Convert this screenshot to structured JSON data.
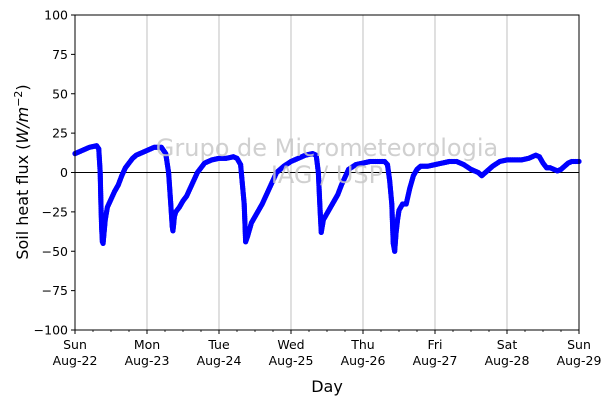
{
  "chart_data": {
    "type": "scatter",
    "xlabel": "Day",
    "ylabel_main": "Soil heat flux (",
    "ylabel_unit": "W/m",
    "ylabel_exp": "−2",
    "ylabel_close": ")",
    "ylim": [
      -100,
      100
    ],
    "xlim": [
      0,
      7
    ],
    "yticks": [
      -100,
      -75,
      -50,
      -25,
      0,
      25,
      50,
      75,
      100
    ],
    "xticks": [
      {
        "x": 0,
        "line1": "Sun",
        "line2": "Aug-22"
      },
      {
        "x": 1,
        "line1": "Mon",
        "line2": "Aug-23"
      },
      {
        "x": 2,
        "line1": "Tue",
        "line2": "Aug-24"
      },
      {
        "x": 3,
        "line1": "Wed",
        "line2": "Aug-25"
      },
      {
        "x": 4,
        "line1": "Thu",
        "line2": "Aug-26"
      },
      {
        "x": 5,
        "line1": "Fri",
        "line2": "Aug-27"
      },
      {
        "x": 6,
        "line1": "Sat",
        "line2": "Aug-28"
      },
      {
        "x": 7,
        "line1": "Sun",
        "line2": "Aug-29"
      }
    ],
    "grid": "vertical",
    "zero_line": true,
    "marker_color": "#0000ff",
    "watermark_line1": "Grupo de Micrometeorologia",
    "watermark_line2": "IAG / USP",
    "series": [
      {
        "color": "#0000ff",
        "x": [
          0.0,
          0.1,
          0.2,
          0.3,
          0.33,
          0.35,
          0.36,
          0.37,
          0.38,
          0.39,
          0.4,
          0.42,
          0.45,
          0.5,
          0.55,
          0.6,
          0.65,
          0.7,
          0.75,
          0.8,
          0.85,
          0.9,
          1.0,
          1.1,
          1.2,
          1.26,
          1.3,
          1.33,
          1.35,
          1.36,
          1.37,
          1.38,
          1.4,
          1.45,
          1.5,
          1.55,
          1.6,
          1.65,
          1.7,
          1.75,
          1.8,
          1.9,
          2.0,
          2.1,
          2.2,
          2.25,
          2.3,
          2.35,
          2.37,
          2.4,
          2.45,
          2.5,
          2.55,
          2.6,
          2.65,
          2.7,
          2.75,
          2.8,
          2.9,
          3.0,
          3.1,
          3.2,
          3.3,
          3.35,
          3.38,
          3.4,
          3.42,
          3.45,
          3.5,
          3.55,
          3.6,
          3.65,
          3.7,
          3.75,
          3.8,
          3.9,
          4.0,
          4.1,
          4.2,
          4.3,
          4.34,
          4.37,
          4.4,
          4.42,
          4.44,
          4.46,
          4.48,
          4.5,
          4.55,
          4.6,
          4.65,
          4.7,
          4.75,
          4.8,
          4.85,
          4.9,
          5.0,
          5.1,
          5.2,
          5.3,
          5.4,
          5.5,
          5.6,
          5.65,
          5.7,
          5.75,
          5.8,
          5.9,
          6.0,
          6.1,
          6.2,
          6.3,
          6.4,
          6.45,
          6.5,
          6.55,
          6.6,
          6.65,
          6.7,
          6.75,
          6.8,
          6.85,
          6.9,
          7.0
        ],
        "y": [
          12,
          14,
          16,
          17,
          15,
          0,
          -20,
          -35,
          -44,
          -45,
          -40,
          -30,
          -22,
          -17,
          -12,
          -8,
          -2,
          3,
          6,
          9,
          11,
          12,
          14,
          16,
          16,
          12,
          0,
          -20,
          -34,
          -37,
          -33,
          -28,
          -25,
          -22,
          -18,
          -15,
          -10,
          -5,
          0,
          3,
          6,
          8,
          9,
          9,
          10,
          9,
          5,
          -20,
          -44,
          -40,
          -32,
          -28,
          -24,
          -20,
          -15,
          -10,
          -5,
          0,
          4,
          7,
          9,
          11,
          12,
          11,
          0,
          -20,
          -38,
          -30,
          -26,
          -22,
          -18,
          -14,
          -8,
          -3,
          2,
          5,
          6,
          7,
          7,
          7,
          5,
          -5,
          -20,
          -45,
          -50,
          -38,
          -30,
          -24,
          -20,
          -20,
          -10,
          -2,
          2,
          4,
          4,
          4,
          5,
          6,
          7,
          7,
          5,
          2,
          0,
          -2,
          0,
          2,
          4,
          7,
          8,
          8,
          8,
          9,
          11,
          10,
          6,
          3,
          3,
          2,
          1,
          2,
          4,
          6,
          7,
          7
        ]
      }
    ]
  }
}
